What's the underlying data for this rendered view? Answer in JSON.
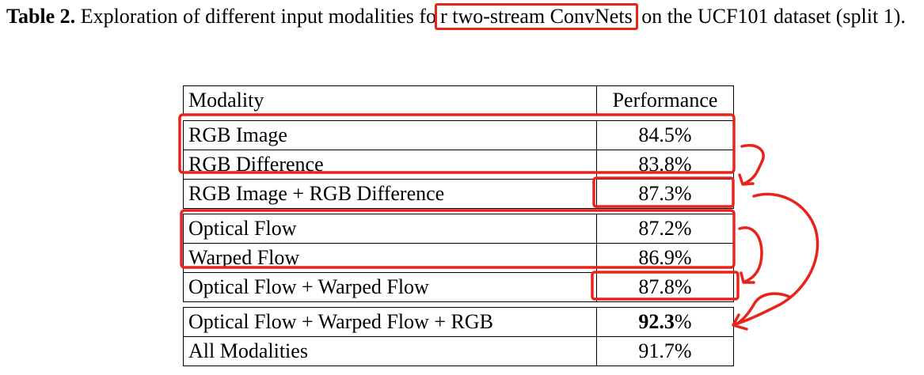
{
  "caption": {
    "label": "Table 2.",
    "text_before": "Exploration of different input modalities fo",
    "highlight": "r two-stream ConvNets",
    "text_after": " on the UCF101 dataset (split 1)."
  },
  "table": {
    "headers": [
      "Modality",
      "Performance"
    ],
    "groups": [
      [
        {
          "modality": "RGB Image",
          "performance": "84.5%"
        },
        {
          "modality": "RGB Difference",
          "performance": "83.8%"
        },
        {
          "modality": "RGB Image + RGB Difference",
          "performance": "87.3%"
        }
      ],
      [
        {
          "modality": "Optical Flow",
          "performance": "87.2%"
        },
        {
          "modality": "Warped Flow",
          "performance": "86.9%"
        },
        {
          "modality": "Optical Flow + Warped Flow",
          "performance": "87.8%"
        }
      ],
      [
        {
          "modality": "Optical Flow + Warped Flow + RGB",
          "performance_bold": "92.3",
          "performance_suffix": "%"
        },
        {
          "modality": "All Modalities",
          "performance": "91.7%"
        }
      ]
    ]
  },
  "annotations": {
    "color": "#e8231c"
  }
}
